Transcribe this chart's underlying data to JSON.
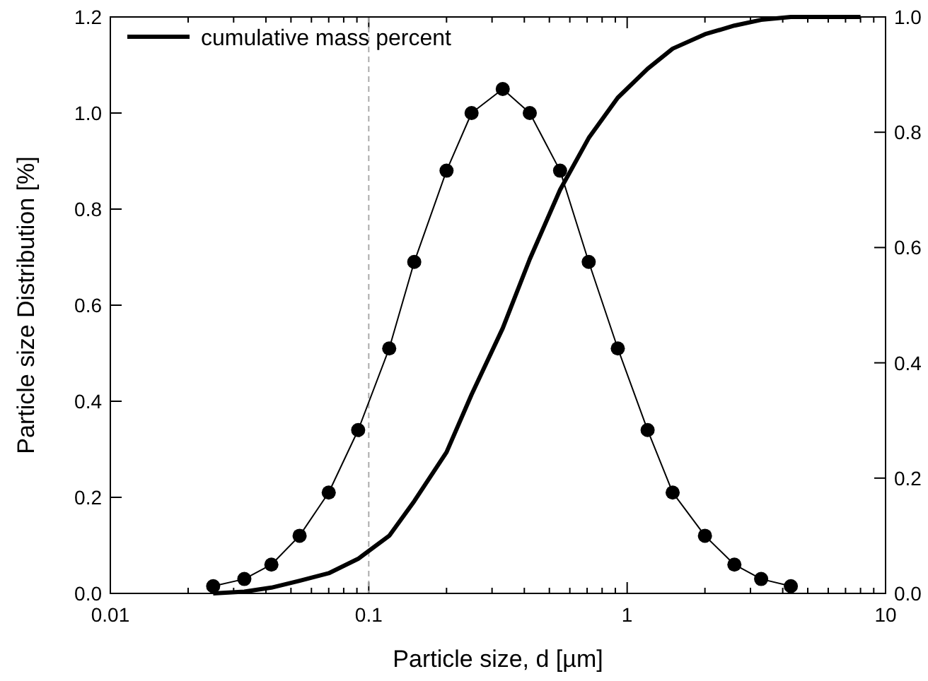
{
  "chart_data": {
    "type": "line",
    "xlabel": "Particle size, d [µm]",
    "ylabel": "Particle size Distribution [%]",
    "log": "x",
    "xlim": [
      0.01,
      10
    ],
    "xticks": [
      0.01,
      0.1,
      1,
      10
    ],
    "ylim": [
      0,
      1.2
    ],
    "yticks": [
      {
        "value": 0,
        "label": "0.0"
      },
      {
        "value": 0.2,
        "label": "0.2"
      },
      {
        "value": 0.4,
        "label": "0.4"
      },
      {
        "value": 0.6,
        "label": "0.6"
      },
      {
        "value": 0.8,
        "label": "0.8"
      },
      {
        "value": 1,
        "label": "1.0"
      },
      {
        "value": 1.2,
        "label": "1.2"
      }
    ],
    "y2lim": [
      0,
      1
    ],
    "y2ticks": [
      {
        "value": 0,
        "label": "0.0"
      },
      {
        "value": 0.2,
        "label": "0.2"
      },
      {
        "value": 0.4,
        "label": "0.4"
      },
      {
        "value": 0.6,
        "label": "0.6"
      },
      {
        "value": 0.8,
        "label": "0.8"
      },
      {
        "value": 1,
        "label": "1.0"
      }
    ],
    "grid": false,
    "legend": "top left",
    "ref_lines": [
      {
        "axis": "x",
        "value": 0.1,
        "color": "#aaaaaa",
        "line_style": "dashed"
      }
    ],
    "series": [
      {
        "color": "#000000",
        "marker": "circle",
        "x": [
          0.025,
          0.033,
          0.042,
          0.054,
          0.07,
          0.091,
          0.12,
          0.15,
          0.2,
          0.25,
          0.33,
          0.42,
          0.55,
          0.71,
          0.92,
          1.2,
          1.5,
          2.0,
          2.6,
          3.3,
          4.3
        ],
        "values": [
          0.015,
          0.03,
          0.06,
          0.12,
          0.21,
          0.34,
          0.51,
          0.69,
          0.88,
          1.0,
          1.05,
          1.0,
          0.88,
          0.69,
          0.51,
          0.34,
          0.21,
          0.12,
          0.06,
          0.03,
          0.015
        ]
      },
      {
        "name": "cumulative mass percent",
        "color": "#000000",
        "marker": "none",
        "axis": "y2",
        "x": [
          0.025,
          0.033,
          0.042,
          0.054,
          0.07,
          0.091,
          0.12,
          0.15,
          0.2,
          0.25,
          0.33,
          0.42,
          0.55,
          0.71,
          0.92,
          1.2,
          1.5,
          2.0,
          2.6,
          3.3,
          4.3,
          8.0
        ],
        "values": [
          0.0,
          0.003,
          0.01,
          0.022,
          0.035,
          0.06,
          0.1,
          0.16,
          0.245,
          0.345,
          0.46,
          0.58,
          0.7,
          0.79,
          0.86,
          0.91,
          0.945,
          0.97,
          0.985,
          0.995,
          1.0,
          1.0
        ]
      }
    ]
  }
}
